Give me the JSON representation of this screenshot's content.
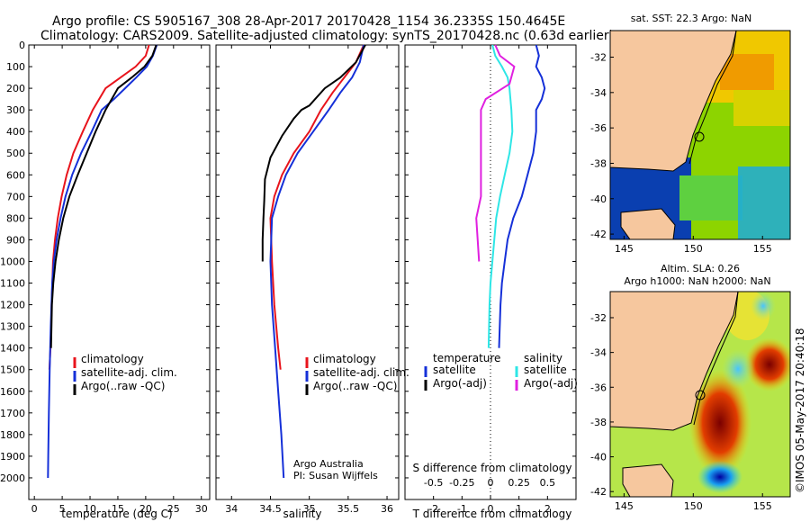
{
  "header": {
    "line1": "Argo profile: CS 5905167_308 28-Apr-2017 20170428_1154 36.2335S 150.4645E",
    "line2": "Climatology: CARS2009. Satellite-adjusted climatology: synTS_20170428.nc (0.63d earlier)"
  },
  "side_text": "©IMOS 05-May-2017 20:40:18",
  "colors": {
    "climatology": "#e8141c",
    "satellite": "#1530d8",
    "argo": "#000000",
    "salinity_satellite": "#2ee6e6",
    "salinity_argo": "#e020e0",
    "land": "#f6c79e",
    "ocean_deep": "#0a3fb0"
  },
  "chart_data": [
    {
      "type": "line",
      "id": "temperature",
      "xlabel": "temperature (deg C)",
      "ylabel": "",
      "xlim": [
        -1,
        31.5
      ],
      "ylim": [
        2100,
        0
      ],
      "xticks": [
        0,
        5,
        10,
        15,
        20,
        25,
        30
      ],
      "yticks": [
        0,
        100,
        200,
        300,
        400,
        500,
        600,
        700,
        800,
        900,
        1000,
        1100,
        1200,
        1300,
        1400,
        1500,
        1600,
        1700,
        1800,
        1900,
        2000
      ],
      "legend": [
        "climatology",
        "satellite-adj. clim.",
        "Argo(..raw -QC)"
      ],
      "legend_loc": "lower-center",
      "series": [
        {
          "name": "climatology",
          "color": "#e8141c",
          "x": [
            20.6,
            20.0,
            18.2,
            15.5,
            12.8,
            10.5,
            8.7,
            7.0,
            5.8,
            4.9,
            4.2,
            3.7,
            3.35,
            3.1,
            2.9,
            2.7
          ],
          "y": [
            0,
            50,
            100,
            150,
            200,
            300,
            400,
            500,
            600,
            700,
            800,
            900,
            1000,
            1200,
            1400,
            1500
          ]
        },
        {
          "name": "satellite-adj. clim.",
          "color": "#1530d8",
          "x": [
            22.0,
            21.3,
            20.2,
            18.3,
            16.3,
            14.3,
            12.1,
            10.3,
            8.4,
            6.8,
            5.6,
            4.7,
            4.0,
            3.5,
            3.2,
            2.95,
            2.75,
            2.6,
            2.5,
            2.45
          ],
          "y": [
            0,
            50,
            100,
            150,
            200,
            250,
            300,
            400,
            500,
            600,
            700,
            800,
            900,
            1000,
            1100,
            1300,
            1500,
            1700,
            1900,
            2000
          ]
        },
        {
          "name": "Argo(..raw -QC)",
          "color": "#000000",
          "x": [
            21.9,
            21.2,
            19.8,
            17.5,
            15.0,
            12.8,
            11.0,
            9.4,
            7.8,
            6.3,
            5.2,
            4.4,
            3.8,
            3.4,
            3.15,
            3.0
          ],
          "y": [
            0,
            50,
            100,
            150,
            200,
            300,
            400,
            500,
            600,
            700,
            800,
            900,
            1000,
            1100,
            1200,
            1400
          ]
        }
      ]
    },
    {
      "type": "line",
      "id": "salinity",
      "xlabel": "salinity",
      "ylabel": "",
      "xlim": [
        33.8,
        36.15
      ],
      "ylim": [
        2100,
        0
      ],
      "xticks": [
        34,
        34.5,
        35,
        35.5,
        36
      ],
      "legend": [
        "climatology",
        "satellite-adj. clim.",
        "Argo(..raw -QC)"
      ],
      "legend_loc": "lower-center",
      "annotation": [
        "Argo Australia",
        "PI: Susan Wijffels"
      ],
      "series": [
        {
          "name": "climatology",
          "color": "#e8141c",
          "x": [
            35.7,
            35.6,
            35.45,
            35.3,
            35.15,
            35.0,
            34.8,
            34.65,
            34.55,
            34.5,
            34.52,
            34.55,
            34.6,
            34.63
          ],
          "y": [
            0,
            80,
            150,
            220,
            300,
            400,
            500,
            600,
            700,
            800,
            1000,
            1200,
            1400,
            1500
          ]
        },
        {
          "name": "satellite-adj. clim.",
          "color": "#1530d8",
          "x": [
            35.7,
            35.65,
            35.55,
            35.4,
            35.25,
            35.05,
            34.85,
            34.7,
            34.6,
            34.52,
            34.5,
            34.52,
            34.56,
            34.6,
            34.64,
            34.67
          ],
          "y": [
            0,
            80,
            150,
            220,
            300,
            400,
            500,
            600,
            700,
            800,
            1000,
            1200,
            1400,
            1600,
            1800,
            2000
          ]
        },
        {
          "name": "Argo(..raw -QC)",
          "color": "#000000",
          "x": [
            35.72,
            35.6,
            35.4,
            35.2,
            35.0,
            34.9,
            34.8,
            34.65,
            34.5,
            34.43,
            34.42,
            34.41,
            34.4,
            34.4
          ],
          "y": [
            0,
            80,
            150,
            200,
            280,
            300,
            340,
            420,
            520,
            620,
            720,
            800,
            900,
            1000
          ]
        }
      ]
    },
    {
      "type": "line",
      "id": "difference",
      "xlabel": "T difference from climatology",
      "xlabel_top": "S difference from climatology",
      "ylabel": "",
      "xlim": [
        -3,
        3
      ],
      "ylim": [
        2100,
        0
      ],
      "xticks": [
        -2,
        -1,
        0,
        1,
        2
      ],
      "xticks_top": [
        -0.5,
        -0.25,
        0,
        0.25,
        0.5
      ],
      "legend_groups": [
        {
          "title": "temperature",
          "entries": [
            "satellite",
            "Argo(-adj)"
          ]
        },
        {
          "title": "salinity",
          "entries": [
            "satellite",
            "Argo(-adj)"
          ]
        }
      ],
      "legend_loc": "lower-center",
      "series": [
        {
          "name": "temperature satellite",
          "color": "#1530d8",
          "x": [
            1.6,
            1.7,
            1.6,
            1.8,
            1.9,
            1.8,
            1.6,
            1.6,
            1.5,
            1.3,
            1.1,
            0.8,
            0.6,
            0.5,
            0.4,
            0.35,
            0.3
          ],
          "y": [
            0,
            50,
            100,
            150,
            200,
            250,
            300,
            400,
            500,
            600,
            700,
            800,
            900,
            1000,
            1100,
            1200,
            1400
          ]
        },
        {
          "name": "temperature Argo(-adj)",
          "color": "#000000",
          "x": [],
          "y": []
        },
        {
          "name": "salinity satellite",
          "color": "#2ee6e6",
          "x": [
            0.02,
            0.05,
            0.12,
            0.18,
            0.2,
            0.22,
            0.23,
            0.2,
            0.15,
            0.1,
            0.06,
            0.04,
            0.02,
            0.0,
            -0.01,
            -0.02
          ],
          "y": [
            0,
            50,
            100,
            150,
            200,
            300,
            400,
            500,
            600,
            700,
            800,
            900,
            1000,
            1100,
            1200,
            1400
          ]
        },
        {
          "name": "salinity Argo(-adj)",
          "color": "#e020e0",
          "x": [
            0.05,
            0.1,
            0.25,
            0.2,
            -0.05,
            -0.1,
            -0.1,
            -0.1,
            -0.1,
            -0.1,
            -0.15,
            -0.12
          ],
          "y": [
            0,
            50,
            100,
            180,
            250,
            300,
            400,
            500,
            600,
            700,
            800,
            1000
          ]
        }
      ]
    }
  ],
  "maps": [
    {
      "id": "sst",
      "title": "sat. SST: 22.3 Argo: NaN",
      "xticks": [
        145,
        150,
        155
      ],
      "yticks": [
        -32,
        -34,
        -36,
        -38,
        -40,
        -42
      ],
      "xlim": [
        144,
        157
      ],
      "ylim": [
        -42.3,
        -30.5
      ],
      "marker": {
        "lon": 150.46,
        "lat": -36.23
      }
    },
    {
      "id": "sla",
      "title_line1": "Altim. SLA: 0.26",
      "title_line2": "Argo h1000: NaN h2000: NaN",
      "xticks": [
        145,
        150,
        155
      ],
      "yticks": [
        -32,
        -34,
        -36,
        -38,
        -40,
        -42
      ],
      "xlim": [
        144,
        157
      ],
      "ylim": [
        -42.3,
        -30.5
      ],
      "marker": {
        "lon": 150.46,
        "lat": -36.23
      }
    }
  ]
}
